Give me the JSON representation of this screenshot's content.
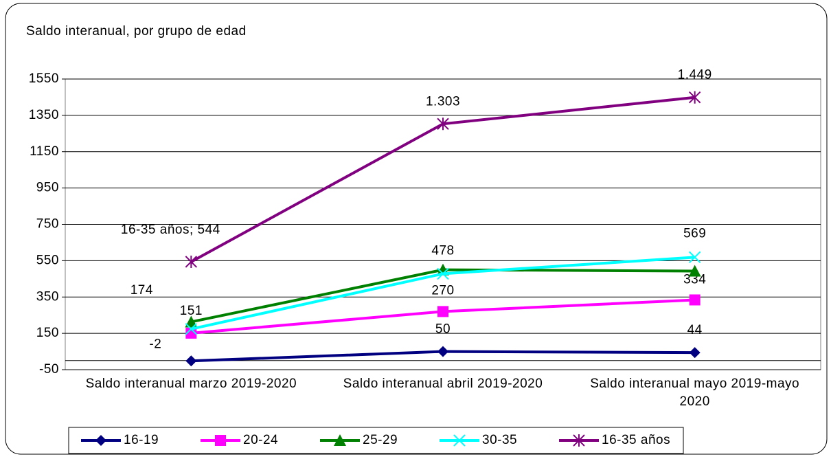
{
  "chart_data": {
    "type": "line",
    "title": "Saldo interanual, por grupo de edad",
    "categories": [
      "Saldo interanual marzo 2019-2020",
      "Saldo interanual abril 2019-2020",
      "Saldo interanual mayo 2019-mayo 2020"
    ],
    "ylim": [
      -50,
      1550
    ],
    "yticks": [
      -50,
      150,
      350,
      550,
      750,
      950,
      1150,
      1350,
      1550
    ],
    "grid": true,
    "legend": "bottom",
    "series": [
      {
        "name": "16-19",
        "color": "#000080",
        "marker": "diamond",
        "values": [
          -2,
          50,
          44
        ]
      },
      {
        "name": "20-24",
        "color": "#ff00ff",
        "marker": "square",
        "values": [
          151,
          270,
          334
        ]
      },
      {
        "name": "25-29",
        "color": "#008000",
        "marker": "triangle",
        "values": [
          213,
          500,
          493
        ]
      },
      {
        "name": "30-35",
        "color": "#00ffff",
        "marker": "x",
        "values": [
          174,
          478,
          569
        ]
      },
      {
        "name": "16-35 años",
        "color": "#800080",
        "marker": "star",
        "values": [
          544,
          1303,
          1449
        ],
        "value_labels": [
          "16-35 años; 544",
          "1.303",
          "1.449"
        ]
      }
    ]
  }
}
